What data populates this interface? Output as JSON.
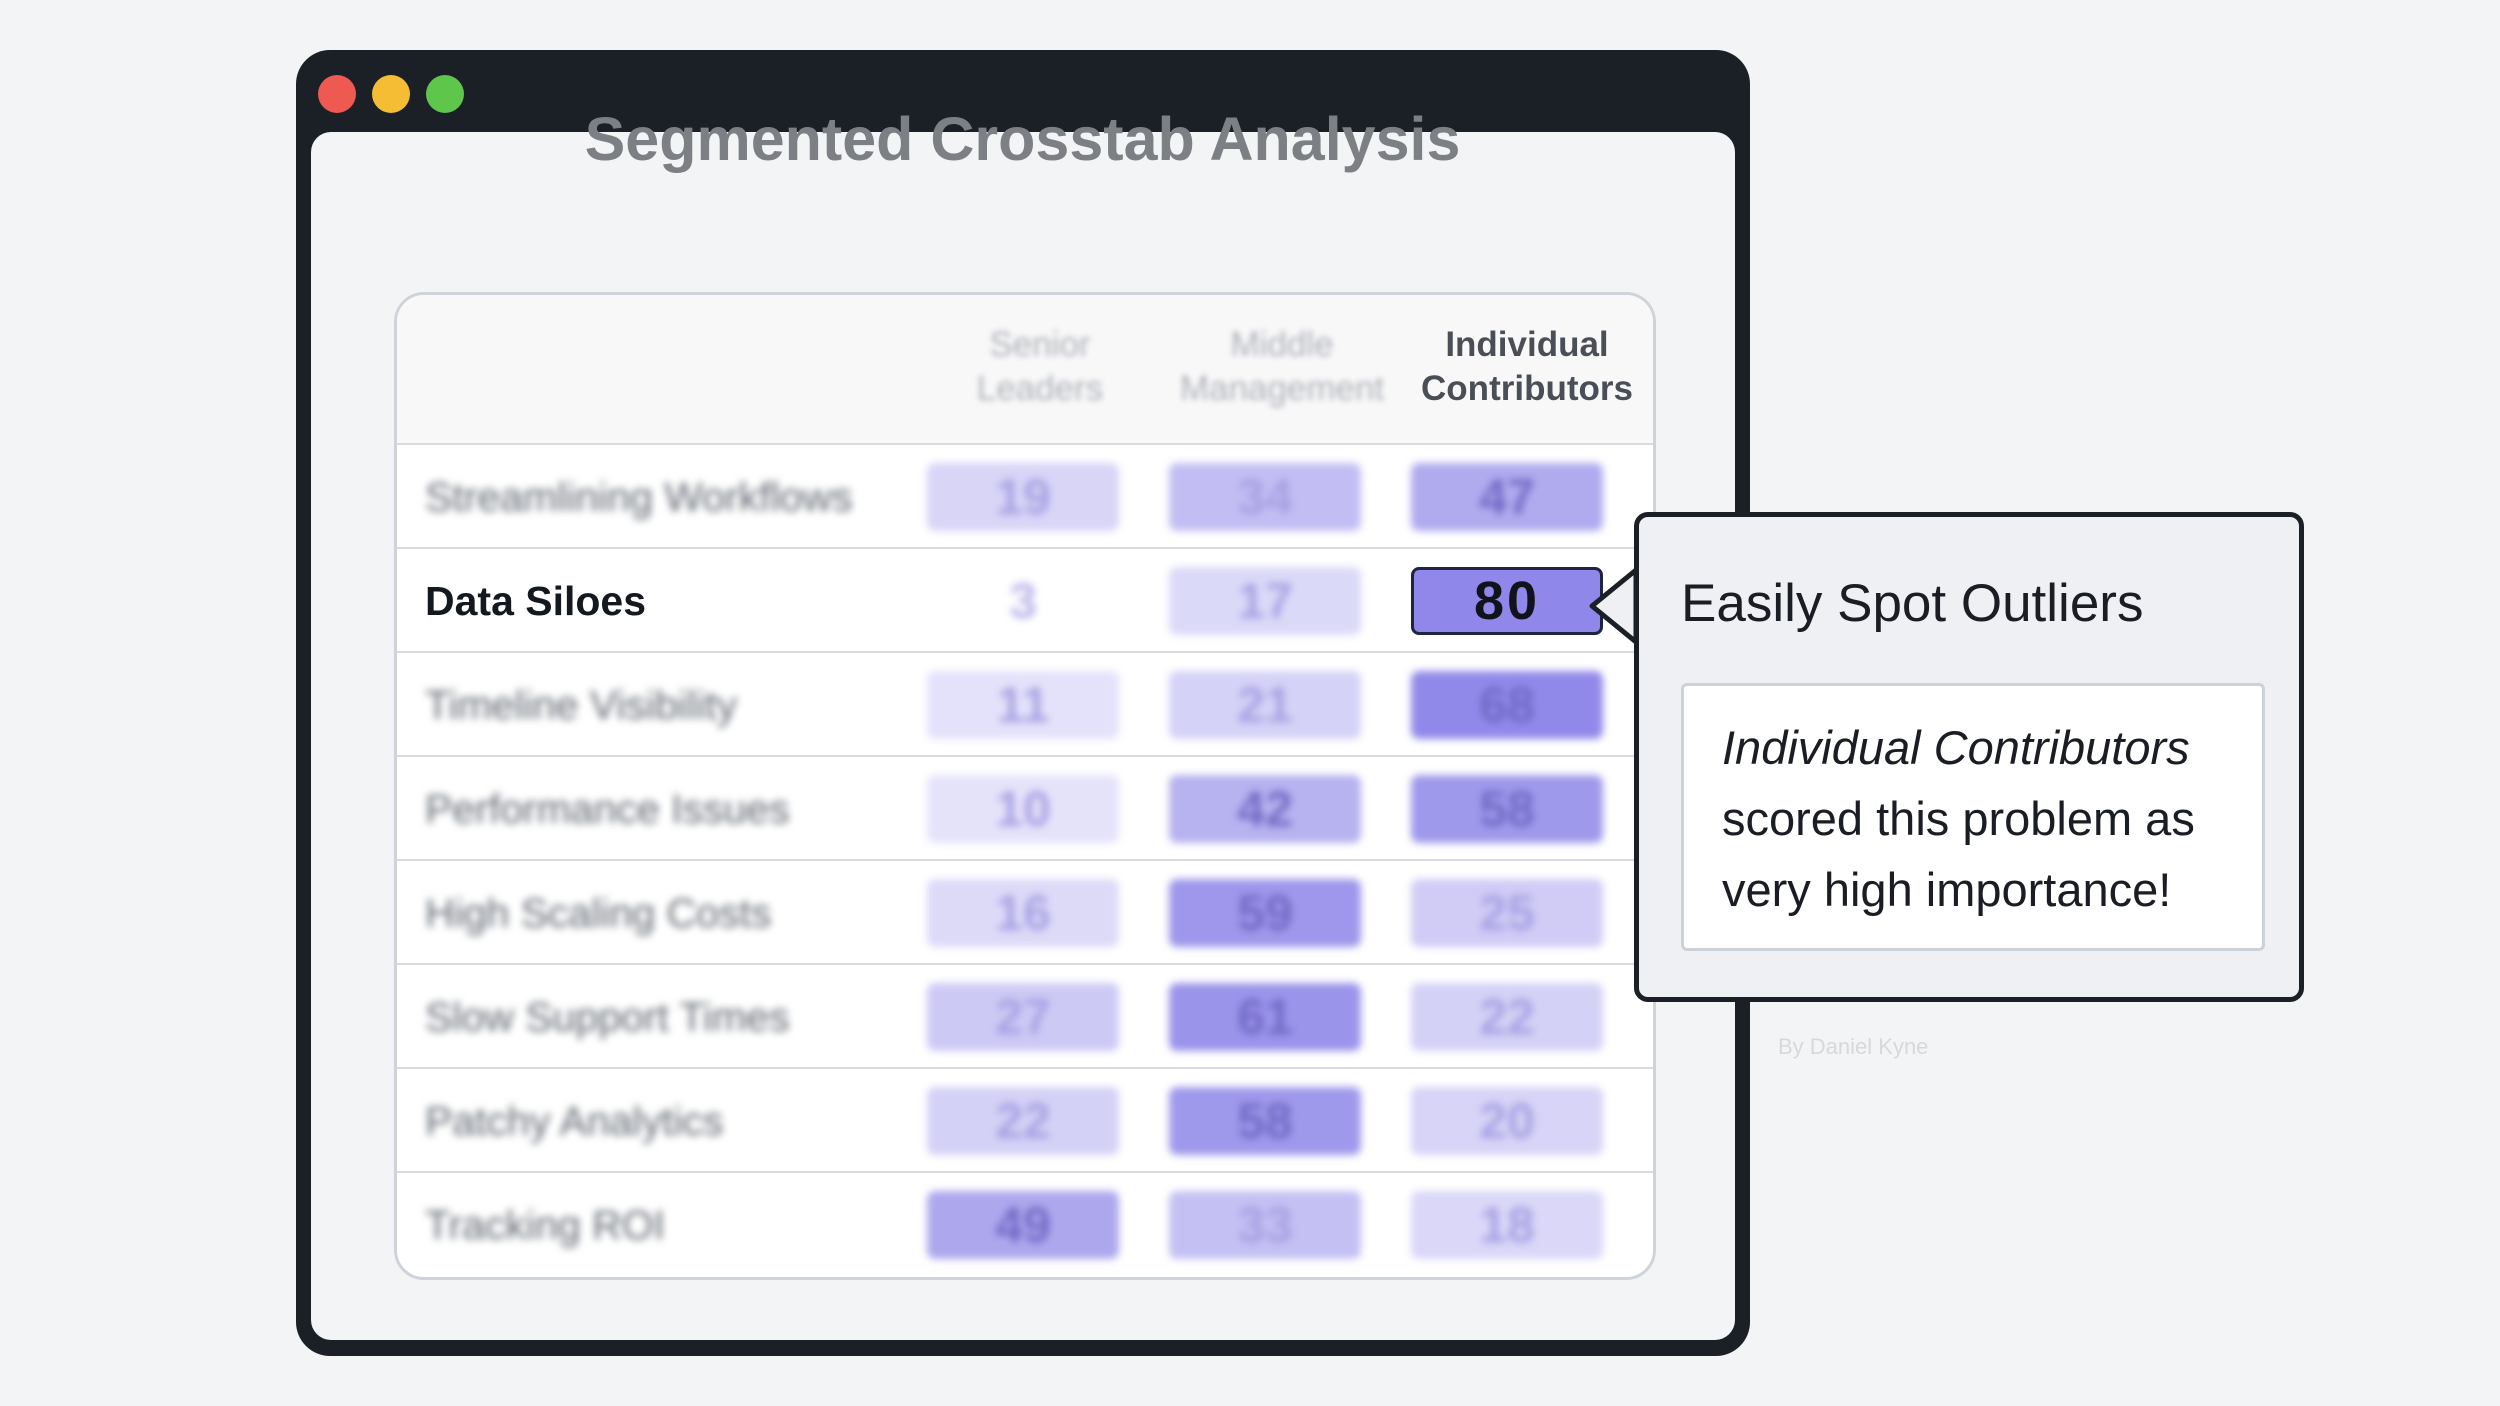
{
  "title": "Segmented Crosstab Analysis",
  "columns": [
    "Senior Leaders",
    "Middle Management",
    "Individual Contributors"
  ],
  "column_lines": [
    [
      "Senior",
      "Leaders"
    ],
    [
      "Middle",
      "Management"
    ],
    [
      "Individual",
      "Contributors"
    ]
  ],
  "rows": [
    {
      "label": "Streamlining Workflows",
      "values": [
        "19",
        "34",
        "47"
      ]
    },
    {
      "label": "Data Siloes",
      "values": [
        "3",
        "17",
        "80"
      ]
    },
    {
      "label": "Timeline Visibility",
      "values": [
        "11",
        "21",
        "68"
      ]
    },
    {
      "label": "Performance Issues",
      "values": [
        "10",
        "42",
        "58"
      ]
    },
    {
      "label": "High Scaling Costs",
      "values": [
        "16",
        "59",
        "25"
      ]
    },
    {
      "label": "Slow Support Times",
      "values": [
        "27",
        "61",
        "22"
      ]
    },
    {
      "label": "Patchy Analytics",
      "values": [
        "22",
        "58",
        "20"
      ]
    },
    {
      "label": "Tracking ROI",
      "values": [
        "49",
        "33",
        "18"
      ]
    }
  ],
  "highlighted_row": 1,
  "highlighted_column": 2,
  "callout": {
    "title": "Easily Spot Outliers",
    "emphasis": "Individual Contributors",
    "line2": "scored this problem as",
    "line3": "very high importance!"
  },
  "byline": "By Daniel Kyne",
  "colors": {
    "window_frame": "#1b1f26",
    "background": "#f3f4f6",
    "cell_scale_low": "#f4f3fd",
    "cell_scale_high": "#8e86e8",
    "highlight_cell": "#8f87ea",
    "traffic_red": "#ee5a52",
    "traffic_yellow": "#f5bd34",
    "traffic_green": "#5ec64a"
  }
}
